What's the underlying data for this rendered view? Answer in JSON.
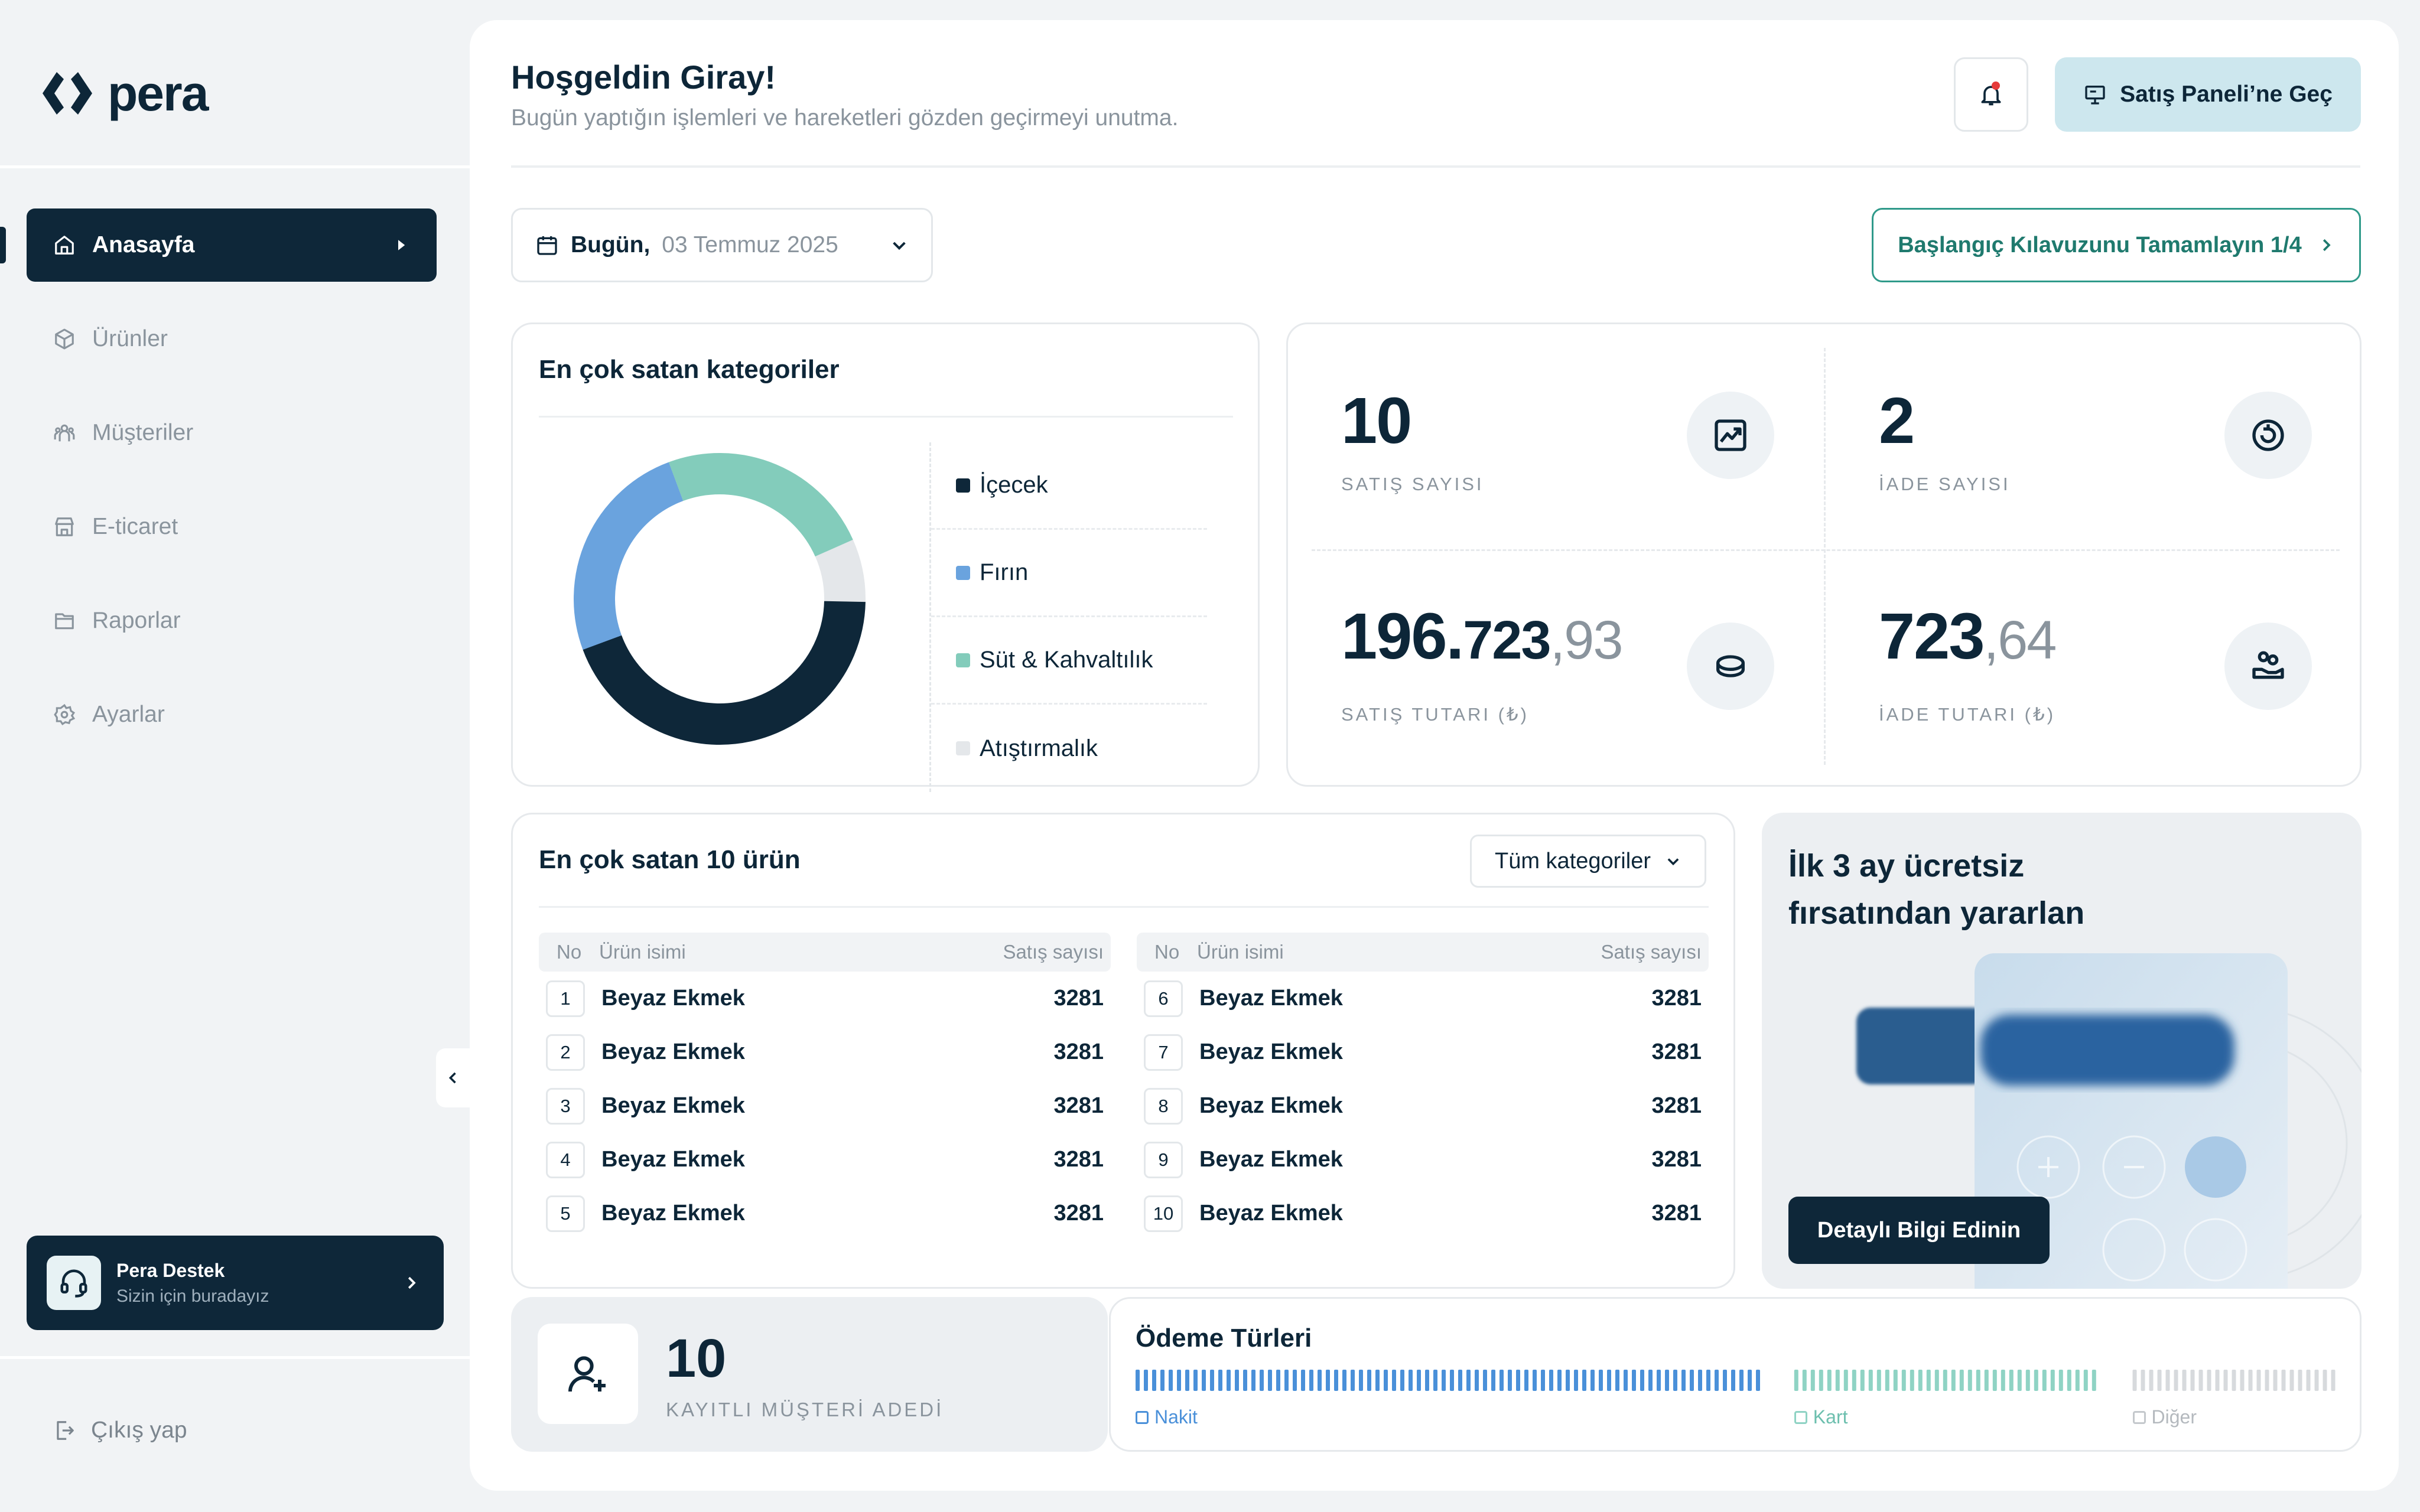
{
  "brand": {
    "name": "pera"
  },
  "sidebar": {
    "items": [
      {
        "label": "Anasayfa",
        "icon": "home-icon",
        "active": true
      },
      {
        "label": "Ürünler",
        "icon": "box-icon"
      },
      {
        "label": "Müşteriler",
        "icon": "users-icon"
      },
      {
        "label": "E-ticaret",
        "icon": "store-icon"
      },
      {
        "label": "Raporlar",
        "icon": "folder-icon"
      },
      {
        "label": "Ayarlar",
        "icon": "gear-icon"
      }
    ],
    "support": {
      "title": "Pera Destek",
      "subtitle": "Sizin için buradayız"
    },
    "logout": "Çıkış yap"
  },
  "header": {
    "title": "Hoşgeldin Giray!",
    "subtitle": "Bugün yaptığın işlemleri ve hareketleri gözden geçirmeyi unutma.",
    "sales_panel_button": "Satış Paneli’ne Geç"
  },
  "date_selector": {
    "prefix": "Bugün,",
    "value": "03 Temmuz 2025"
  },
  "guide_button": "Başlangıç Kılavuzunu Tamamlayın 1/4",
  "categories": {
    "title": "En çok satan kategoriler",
    "items": [
      {
        "label": "İçecek",
        "color": "#0e2739"
      },
      {
        "label": "Fırın",
        "color": "#6aa3de"
      },
      {
        "label": "Süt & Kahvaltılık",
        "color": "#83ccbb"
      },
      {
        "label": "Atıştırmalık",
        "color": "#e4e7ea"
      }
    ]
  },
  "chart_data": {
    "type": "pie",
    "donut": true,
    "categories": [
      "İçecek",
      "Fırın",
      "Süt & Kahvaltılık",
      "Atıştırmalık"
    ],
    "values": [
      44,
      25,
      24,
      7
    ]
  },
  "stats": {
    "sales_count": {
      "value": "10",
      "label": "SATIŞ SAYISI"
    },
    "return_count": {
      "value": "2",
      "label": "İADE SAYISI"
    },
    "sales_amount": {
      "int_a": "196.",
      "int_b": "723",
      "dec": ",93",
      "label": "SATIŞ TUTARI (₺)"
    },
    "return_amount": {
      "int": "723",
      "dec": ",64",
      "label": "İADE TUTARI (₺)"
    }
  },
  "top_products": {
    "title": "En çok satan 10 ürün",
    "filter": "Tüm kategoriler",
    "columns": {
      "no": "No",
      "name": "Ürün isimi",
      "count": "Satış sayısı"
    },
    "left": [
      {
        "no": "1",
        "name": "Beyaz Ekmek",
        "count": "3281"
      },
      {
        "no": "2",
        "name": "Beyaz Ekmek",
        "count": "3281"
      },
      {
        "no": "3",
        "name": "Beyaz Ekmek",
        "count": "3281"
      },
      {
        "no": "4",
        "name": "Beyaz Ekmek",
        "count": "3281"
      },
      {
        "no": "5",
        "name": "Beyaz Ekmek",
        "count": "3281"
      }
    ],
    "right": [
      {
        "no": "6",
        "name": "Beyaz Ekmek",
        "count": "3281"
      },
      {
        "no": "7",
        "name": "Beyaz Ekmek",
        "count": "3281"
      },
      {
        "no": "8",
        "name": "Beyaz Ekmek",
        "count": "3281"
      },
      {
        "no": "9",
        "name": "Beyaz Ekmek",
        "count": "3281"
      },
      {
        "no": "10",
        "name": "Beyaz Ekmek",
        "count": "3281"
      }
    ]
  },
  "promo": {
    "line1": "İlk 3 ay ücretsiz",
    "line2": "fırsatından yararlan",
    "button": "Detaylı Bilgi Edinin"
  },
  "customers": {
    "value": "10",
    "label": "KAYITLI MÜŞTERİ ADEDİ"
  },
  "payment": {
    "title": "Ödeme Türleri",
    "types": [
      {
        "label": "Nakit",
        "share": 0.55,
        "color": "#4a90d9"
      },
      {
        "label": "Kart",
        "share": 0.27,
        "color": "#8fd3c4"
      },
      {
        "label": "Diğer",
        "share": 0.18,
        "color": "#d7dadd"
      }
    ]
  }
}
